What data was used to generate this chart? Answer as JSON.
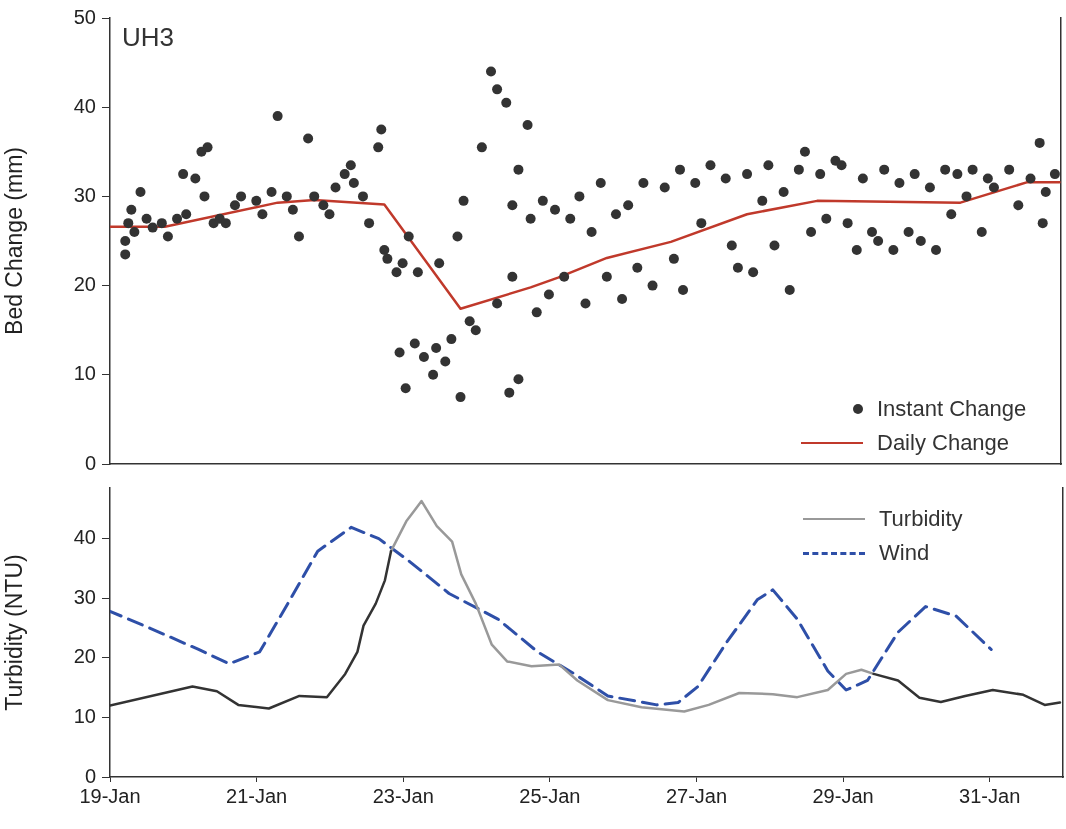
{
  "chart_data": [
    {
      "type": "scatter",
      "ylabel": "Bed Change (mm)",
      "annotations": [
        "UH3"
      ],
      "xlim": [
        "--01-19",
        "--02-01"
      ],
      "ylim": [
        0,
        50
      ],
      "yticks": [
        0,
        10,
        20,
        30,
        40,
        50
      ],
      "tick_labels": "y",
      "legend": "bottom right",
      "series": [
        {
          "name": "Instant Change",
          "color": "#333333",
          "marker": "circle",
          "x": [
            "--01-19T05:00",
            "--01-19T05:00",
            "--01-19T06:00",
            "--01-19T07:00",
            "--01-19T08:00",
            "--01-19T10:00",
            "--01-19T12:00",
            "--01-19T14:00",
            "--01-19T17:00",
            "--01-19T19:00",
            "--01-19T22:00",
            "--01-20T00:00",
            "--01-20T01:00",
            "--01-20T04:00",
            "--01-20T06:00",
            "--01-20T08:00",
            "--01-20T07:00",
            "--01-20T10:00",
            "--01-20T12:00",
            "--01-20T14:00",
            "--01-20T17:00",
            "--01-20T19:00",
            "--01-21T00:00",
            "--01-21T02:00",
            "--01-21T07:00",
            "--01-21T05:00",
            "--01-21T10:00",
            "--01-21T12:00",
            "--01-21T14:00",
            "--01-21T17:00",
            "--01-21T19:00",
            "--01-21T22:00",
            "--01-22T00:00",
            "--01-22T02:00",
            "--01-22T05:00",
            "--01-22T07:00",
            "--01-22T08:00",
            "--01-22T11:00",
            "--01-22T13:00",
            "--01-22T16:00",
            "--01-22T17:00",
            "--01-22T18:00",
            "--01-22T19:00",
            "--01-22T22:00",
            "--01-22T23:00",
            "--01-23T00:00",
            "--01-23T01:00",
            "--01-23T02:00",
            "--01-23T04:00",
            "--01-23T05:00",
            "--01-23T07:00",
            "--01-23T10:00",
            "--01-23T11:00",
            "--01-23T12:00",
            "--01-23T14:00",
            "--01-23T16:00",
            "--01-23T18:00",
            "--01-23T19:00",
            "--01-23T20:00",
            "--01-23T22:00",
            "--01-24T00:00",
            "--01-24T02:00",
            "--01-24T05:00",
            "--01-24T07:00",
            "--01-24T07:00",
            "--01-24T10:00",
            "--01-24T11:00",
            "--01-24T12:00",
            "--01-24T12:00",
            "--01-24T14:00",
            "--01-24T14:00",
            "--01-24T17:00",
            "--01-24T18:00",
            "--01-24T20:00",
            "--01-24T22:00",
            "--01-25T00:00",
            "--01-25T02:00",
            "--01-25T05:00",
            "--01-25T07:00",
            "--01-25T10:00",
            "--01-25T12:00",
            "--01-25T14:00",
            "--01-25T17:00",
            "--01-25T19:00",
            "--01-25T22:00",
            "--01-26T00:00",
            "--01-26T02:00",
            "--01-26T05:00",
            "--01-26T07:00",
            "--01-26T10:00",
            "--01-26T14:00",
            "--01-26T17:00",
            "--01-26T19:00",
            "--01-26T20:00",
            "--01-27T00:00",
            "--01-27T02:00",
            "--01-27T05:00",
            "--01-27T10:00",
            "--01-27T12:00",
            "--01-27T14:00",
            "--01-27T17:00",
            "--01-27T19:00",
            "--01-27T22:00",
            "--01-28T00:00",
            "--01-28T02:00",
            "--01-28T05:00",
            "--01-28T07:00",
            "--01-28T10:00",
            "--01-28T12:00",
            "--01-28T14:00",
            "--01-28T17:00",
            "--01-28T19:00",
            "--01-28T22:00",
            "--01-29T00:00",
            "--01-29T02:00",
            "--01-29T05:00",
            "--01-29T07:00",
            "--01-29T10:00",
            "--01-29T12:00",
            "--01-29T14:00",
            "--01-29T17:00",
            "--01-29T19:00",
            "--01-29T22:00",
            "--01-30T00:00",
            "--01-30T02:00",
            "--01-30T05:00",
            "--01-30T07:00",
            "--01-30T10:00",
            "--01-30T12:00",
            "--01-30T14:00",
            "--01-30T17:00",
            "--01-30T19:00",
            "--01-30T22:00",
            "--01-31T00:00",
            "--01-31T02:00",
            "--01-31T07:00",
            "--01-31T10:00",
            "--01-31T14:00",
            "--01-31T17:00",
            "--01-31T18:00",
            "--01-31T19:00",
            "--01-31T22:00"
          ],
          "values": [
            23.5,
            25,
            27,
            28.5,
            26,
            30.5,
            27.5,
            26.5,
            27,
            25.5,
            27.5,
            32.5,
            28,
            32,
            35,
            35.5,
            30,
            27,
            27.5,
            27,
            29,
            30,
            29.5,
            28,
            39,
            30.5,
            30,
            28.5,
            25.5,
            36.5,
            30,
            29,
            28,
            31,
            32.5,
            33.5,
            31.5,
            30,
            27,
            35.5,
            37.5,
            24,
            23,
            21.5,
            12.5,
            22.5,
            8.5,
            25.5,
            13.5,
            21.5,
            12,
            10,
            13,
            22.5,
            11.5,
            14,
            25.5,
            7.5,
            29.5,
            16,
            15,
            35.5,
            44,
            42,
            18,
            40.5,
            8,
            29,
            21,
            33,
            9.5,
            38,
            27.5,
            17,
            29.5,
            19,
            28.5,
            21,
            27.5,
            30,
            18,
            26,
            31.5,
            21,
            28,
            18.5,
            29,
            22,
            31.5,
            20,
            31,
            23,
            33,
            19.5,
            31.5,
            27,
            33.5,
            32,
            24.5,
            22,
            32.5,
            21.5,
            29.5,
            33.5,
            24.5,
            30.5,
            19.5,
            33,
            35,
            26,
            32.5,
            27.5,
            34,
            33.5,
            27,
            24,
            32,
            26,
            25,
            33,
            24,
            31.5,
            26,
            32.5,
            25,
            31,
            24,
            33,
            28,
            32.5,
            30,
            33,
            26,
            32,
            31,
            33,
            29,
            32,
            36,
            27,
            30.5,
            32.5
          ]
        },
        {
          "name": "Daily Change",
          "type": "line",
          "color": "#c0392b",
          "x": [
            "--01-19T00:00",
            "--01-19T18:00",
            "--01-21T07:00",
            "--01-21T19:00",
            "--01-22T18:00",
            "--01-23T19:00",
            "--01-24T18:00",
            "--01-25T03:00",
            "--01-25T19:00",
            "--01-26T16:00",
            "--01-27T17:00",
            "--01-28T16:00",
            "--01-30T15:00",
            "--01-31T13:00",
            "--01-31T23:30"
          ],
          "values": [
            26.6,
            26.6,
            29.3,
            29.6,
            29.1,
            17.4,
            19.8,
            20.9,
            23.1,
            24.9,
            28,
            29.5,
            29.3,
            31.6,
            31.6
          ]
        }
      ]
    },
    {
      "type": "line",
      "ylabel": "Turbidity (NTU)",
      "xlim": [
        "--01-19",
        "--02-01"
      ],
      "xticks": [
        {
          "value": "--01-19",
          "label": "19-Jan"
        },
        {
          "value": "--01-21",
          "label": "21-Jan"
        },
        {
          "value": "--01-23",
          "label": "23-Jan"
        },
        {
          "value": "--01-25",
          "label": "25-Jan"
        },
        {
          "value": "--01-27",
          "label": "27-Jan"
        },
        {
          "value": "--01-29",
          "label": "29-Jan"
        },
        {
          "value": "--01-31",
          "label": "31-Jan"
        }
      ],
      "ylim": [
        0,
        48.5
      ],
      "yticks": [
        0,
        10,
        20,
        30,
        40
      ],
      "legend": "top right",
      "series": [
        {
          "color": "#333333",
          "x": [
            "--01-19T00:00",
            "--01-20T03:00",
            "--01-20T11:00",
            "--01-20T18:00",
            "--01-21T04:00",
            "--01-21T14:00",
            "--01-21T23:00",
            "--01-22T05:00",
            "--01-22T09:00",
            "--01-22T11:00",
            "--01-22T15:00",
            "--01-22T18:00",
            "--01-22T20:00",
            "--01-26T00:00",
            "--01-29T10:00",
            "--01-29T18:00",
            "--01-30T01:00",
            "--01-30T08:00",
            "--01-30T16:00",
            "--01-31T01:00",
            "--01-31T11:00",
            "--01-31T18:00",
            "--01-31T23:00"
          ],
          "values": [
            12,
            15.2,
            14.4,
            12.1,
            11.5,
            13.6,
            13.4,
            17.3,
            21,
            25.4,
            29.1,
            33,
            37.9,
            null,
            17.3,
            16.2,
            13.3,
            12.6,
            13.6,
            14.6,
            13.8,
            12.1,
            12.5
          ]
        },
        {
          "name": "Turbidity",
          "color": "#999999",
          "x": [
            "--01-22T20:00",
            "--01-23T01:00",
            "--01-23T06:00",
            "--01-23T11:00",
            "--01-23T16:00",
            "--01-23T19:00",
            "--01-23T23:45",
            "--01-24T05:00",
            "--01-24T10:00",
            "--01-24T18:00",
            "--01-25T03:00",
            "--01-25T09:00",
            "--01-25T19:00",
            "--01-26T06:00",
            "--01-26T20:00",
            "--01-27T04:00",
            "--01-27T14:00",
            "--01-28T01:00",
            "--01-28T09:00",
            "--01-28T19:00",
            "--01-29T01:00",
            "--01-29T06:00",
            "--01-29T10:00"
          ],
          "values": [
            37.9,
            42.9,
            46.3,
            42.1,
            39.5,
            34,
            29.1,
            22.2,
            19.4,
            18.6,
            18.9,
            16.2,
            12.9,
            11.7,
            11,
            12.1,
            14.1,
            13.9,
            13.4,
            14.6,
            17.3,
            18,
            17.3
          ]
        },
        {
          "name": "Wind",
          "color": "#2e4fa8",
          "line_style": "dashed",
          "x": [
            "--01-19T00:00",
            "--01-19T13:00",
            "--01-20T05:00",
            "--01-20T15:00",
            "--01-21T01:00",
            "--01-21T11:00",
            "--01-21T20:00",
            "--01-22T07:00",
            "--01-22T16:00",
            "--01-23T02:00",
            "--01-23T15:00",
            "--01-24T07:00",
            "--01-24T20:00",
            "--01-25T08:00",
            "--01-25T19:00",
            "--01-26T11:00",
            "--01-26T18:00",
            "--01-27T00:30",
            "--01-27T10:00",
            "--01-27T20:00",
            "--01-28T01:00",
            "--01-28T09:00",
            "--01-28T19:00",
            "--01-29T01:00",
            "--01-29T08:00",
            "--01-29T18:00",
            "--01-30T03:00",
            "--01-30T13:00",
            "--01-31T00:30"
          ],
          "values": [
            27.8,
            25,
            21.4,
            19,
            21,
            29.8,
            37.9,
            41.9,
            40,
            36.2,
            30.8,
            26.5,
            21,
            17.3,
            13.6,
            12.1,
            12.5,
            15.2,
            22.7,
            29.8,
            31.4,
            26.5,
            17.8,
            14.6,
            16.2,
            24.3,
            28.6,
            27,
            21.4
          ]
        }
      ]
    }
  ]
}
